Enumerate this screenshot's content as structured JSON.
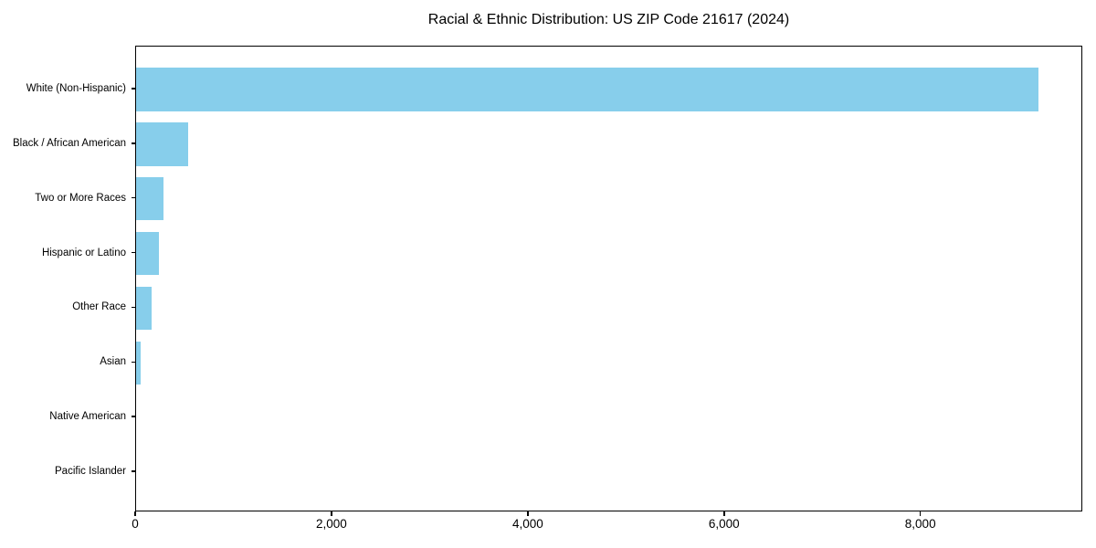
{
  "chart_data": {
    "type": "bar",
    "orientation": "horizontal",
    "title": "Racial & Ethnic Distribution: US ZIP Code 21617 (2024)",
    "categories": [
      "White (Non-Hispanic)",
      "Black / African American",
      "Two or More Races",
      "Hispanic or Latino",
      "Other Race",
      "Asian",
      "Native American",
      "Pacific Islander"
    ],
    "values": [
      9190,
      533,
      282,
      233,
      158,
      50,
      0,
      0
    ],
    "xlabel": "",
    "ylabel": "",
    "xlim": [
      0,
      9650
    ],
    "x_ticks": [
      0,
      2000,
      4000,
      6000,
      8000
    ],
    "x_tick_labels": [
      "0",
      "2,000",
      "4,000",
      "6,000",
      "8,000"
    ],
    "bar_color": "#87CEEB",
    "axis_color": "#000000",
    "text_color": "#000000",
    "background_color": "#ffffff",
    "grid": false,
    "legend": false
  }
}
